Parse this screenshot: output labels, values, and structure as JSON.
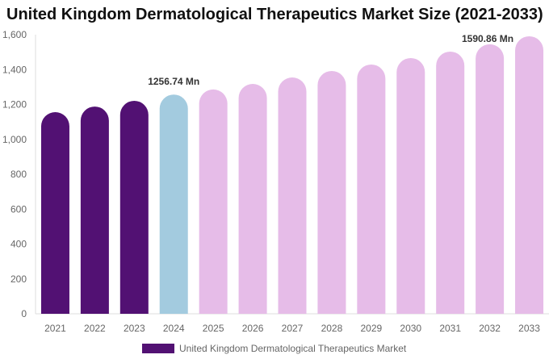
{
  "chart_data": {
    "type": "bar",
    "title": "United Kingdom Dermatological Therapeutics Market Size (2021-2033)",
    "categories": [
      "2021",
      "2022",
      "2023",
      "2024",
      "2025",
      "2026",
      "2027",
      "2028",
      "2029",
      "2030",
      "2031",
      "2032",
      "2033"
    ],
    "series": [
      {
        "name": "United Kingdom Dermatological Therapeutics Market",
        "values": [
          1156,
          1188,
          1221,
          1256.74,
          1286,
          1318,
          1355,
          1392,
          1429,
          1466,
          1503,
          1545,
          1590.86
        ]
      }
    ],
    "data_labels": {
      "3": "1256.74 Mn",
      "12": "1590.86 Mn"
    },
    "ylim": [
      0,
      1600
    ],
    "yticks": [
      0,
      200,
      400,
      600,
      800,
      1000,
      1200,
      1400,
      1600
    ],
    "ytick_labels": [
      "0",
      "200",
      "400",
      "600",
      "800",
      "1,000",
      "1,200",
      "1,400",
      "1,600"
    ],
    "grid": false,
    "legend": "bottom",
    "colors": {
      "historical": "#521173",
      "base_year": "#a3cbdf",
      "forecast": "#e6bce8"
    }
  }
}
